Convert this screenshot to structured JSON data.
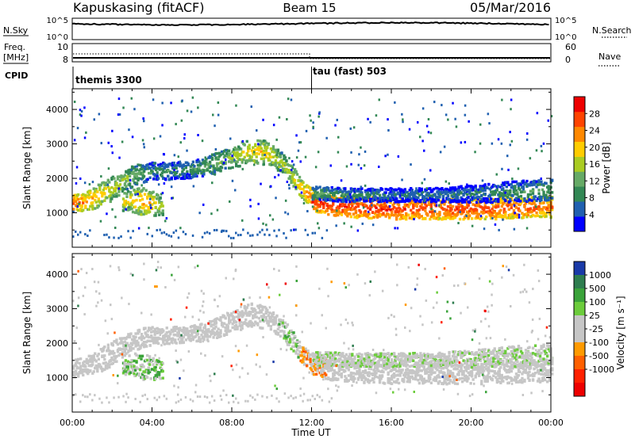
{
  "header": {
    "radar": "Kapuskasing (fitACF)",
    "beam": "Beam 15",
    "date": "05/Mar/2016"
  },
  "noise_panel": {
    "left_label": "N.Sky",
    "left_ticks": [
      "10^5",
      "10^0"
    ],
    "right_label": "N.Search",
    "right_ticks": [
      "10^5",
      "10^0"
    ]
  },
  "freq_panel": {
    "left_label_1": "Freq.",
    "left_label_2": "[MHz]",
    "left_ticks": [
      "10",
      "8"
    ],
    "right_label": "Nave",
    "right_ticks": [
      "60",
      "0"
    ]
  },
  "cpid_panel": {
    "label": "CPID",
    "modes": [
      {
        "name": "themis 3300",
        "start_hour": 0
      },
      {
        "name": "tau (fast) 503",
        "start_hour": 12
      }
    ]
  },
  "colors": {
    "power": [
      "#0000ff",
      "#2060b0",
      "#338855",
      "#66aa66",
      "#aacc22",
      "#ffcc00",
      "#ff8800",
      "#ff4400",
      "#ee0000"
    ],
    "velocity": [
      "#1a3aa8",
      "#2e7d4f",
      "#3aa33a",
      "#6ccc3c",
      "#c6c6c6",
      "#c6c6c6",
      "#ff9a00",
      "#ff6000",
      "#ff2000",
      "#ee0000"
    ]
  },
  "chart_data": [
    {
      "type": "heatmap",
      "name": "power",
      "xlabel": "",
      "ylabel": "Slant Range [km]",
      "xlim": [
        0,
        24
      ],
      "ylim": [
        0,
        4600
      ],
      "yticks": [
        1000,
        2000,
        3000,
        4000
      ],
      "colorbar": {
        "label": "Power [dB]",
        "range": [
          0,
          32
        ],
        "ticks": [
          4,
          8,
          12,
          16,
          20,
          24,
          28
        ]
      },
      "bands": [
        {
          "hours": [
            0,
            0.5,
            1,
            1.5,
            2,
            2.5,
            3,
            3.5,
            4,
            4.5,
            5,
            5.5,
            6,
            6.5,
            7,
            7.5,
            8,
            8.5,
            9,
            9.5,
            10,
            10.5,
            11,
            11.5,
            12
          ],
          "center_km": [
            1300,
            1350,
            1450,
            1600,
            1750,
            1950,
            2100,
            2200,
            2250,
            2250,
            2250,
            2280,
            2300,
            2350,
            2450,
            2550,
            2650,
            2750,
            2850,
            2800,
            2700,
            2450,
            2100,
            1700,
            1450
          ],
          "width_km": [
            250,
            250,
            300,
            350,
            350,
            300,
            300,
            300,
            250,
            250,
            250,
            250,
            250,
            250,
            300,
            300,
            300,
            350,
            350,
            350,
            300,
            300,
            300,
            250,
            250
          ],
          "power_db": [
            26,
            24,
            22,
            20,
            18,
            16,
            14,
            12,
            10,
            10,
            10,
            10,
            10,
            12,
            14,
            14,
            16,
            18,
            20,
            20,
            18,
            16,
            18,
            22,
            26
          ]
        },
        {
          "hours": [
            12,
            13,
            14,
            15,
            16,
            17,
            18,
            19,
            20,
            21,
            22,
            23,
            24
          ],
          "center_km": [
            1350,
            1250,
            1200,
            1180,
            1150,
            1150,
            1150,
            1150,
            1150,
            1150,
            1180,
            1200,
            1200
          ],
          "width_km": [
            250,
            300,
            300,
            300,
            300,
            300,
            300,
            300,
            300,
            300,
            300,
            300,
            300
          ],
          "power_db": [
            28,
            28,
            28,
            28,
            28,
            27,
            27,
            27,
            27,
            27,
            26,
            26,
            25
          ]
        },
        {
          "hours": [
            12,
            14,
            16,
            18,
            20,
            22,
            24
          ],
          "center_km": [
            1600,
            1550,
            1550,
            1550,
            1580,
            1650,
            1700
          ],
          "width_km": [
            200,
            200,
            200,
            200,
            250,
            300,
            300
          ],
          "power_db": [
            12,
            10,
            8,
            8,
            8,
            10,
            12
          ]
        },
        {
          "hours": [
            2.5,
            3,
            3.5,
            4,
            4.5
          ],
          "center_km": [
            1350,
            1400,
            1350,
            1300,
            1200
          ],
          "width_km": [
            250,
            350,
            400,
            350,
            250
          ],
          "power_db": [
            18,
            20,
            22,
            20,
            16
          ]
        }
      ]
    },
    {
      "type": "heatmap",
      "name": "velocity",
      "xlabel": "Time UT",
      "ylabel": "Slant Range [km]",
      "xlim": [
        0,
        24
      ],
      "ylim": [
        0,
        4600
      ],
      "yticks": [
        1000,
        2000,
        3000,
        4000
      ],
      "xticks": [
        "00:00",
        "04:00",
        "08:00",
        "12:00",
        "16:00",
        "20:00",
        "00:00"
      ],
      "colorbar": {
        "label": "Velocity [m s⁻¹]",
        "ticks": [
          "1000",
          "500",
          "100",
          "25",
          "-25",
          "-100",
          "-500",
          "-1000"
        ]
      },
      "notes": "Dominant velocity near zero (grey) along the scatter band; green (positive) patches near 04:00 at 1200-1500 km and near 11:00 at 2000-3000 km; orange (negative) patches near 12:00 at 1000-2200 km."
    }
  ]
}
